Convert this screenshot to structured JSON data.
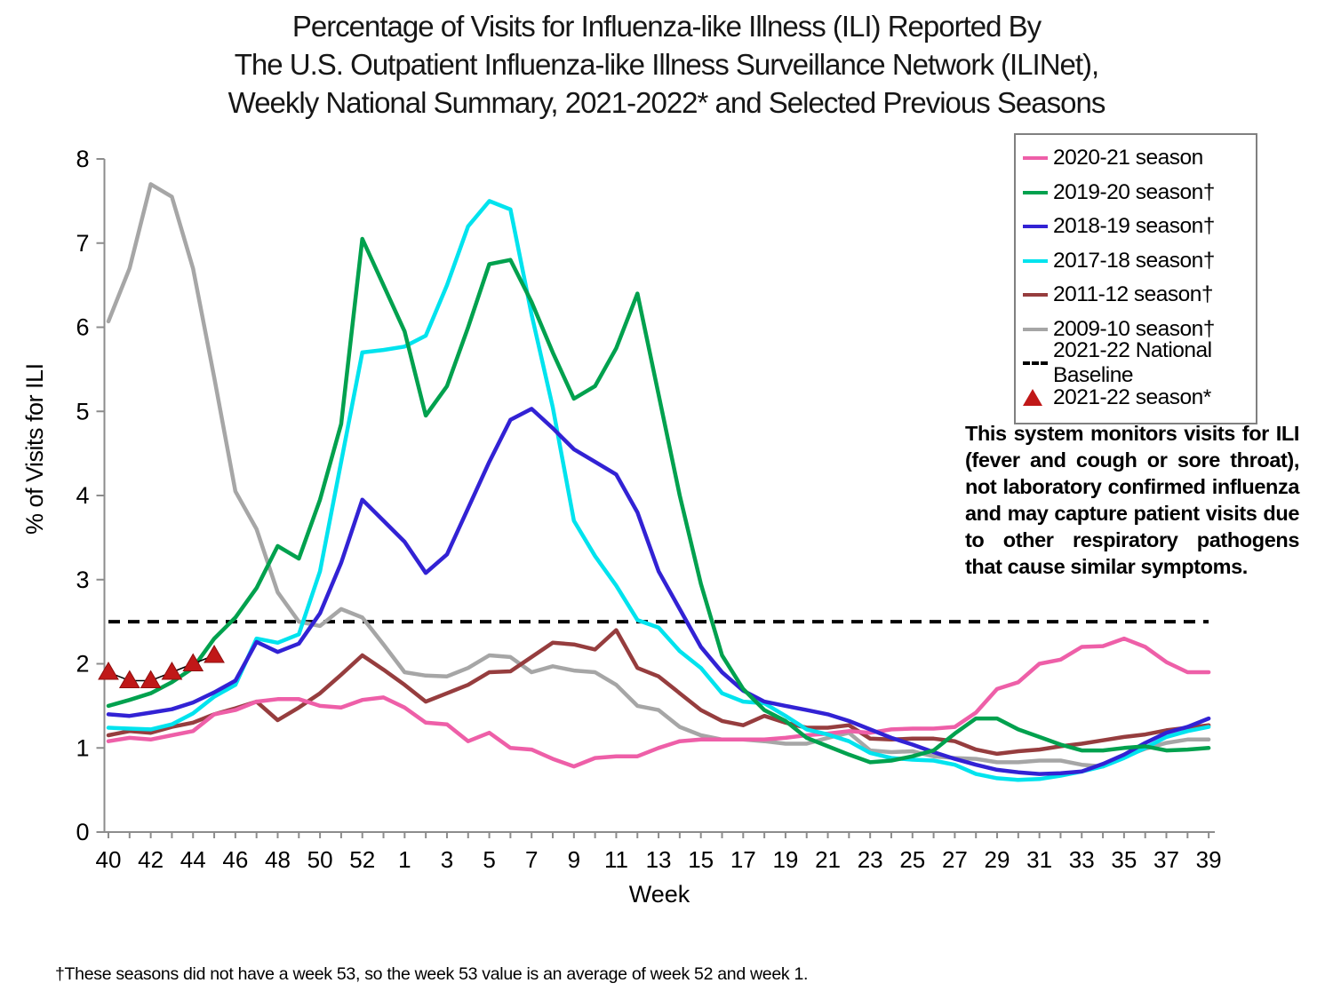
{
  "title": {
    "line1": "Percentage of Visits for Influenza-like Illness (ILI) Reported By",
    "line2": "The U.S. Outpatient Influenza-like Illness Surveillance Network (ILINet),",
    "line3": "Weekly National Summary, 2021-2022* and Selected Previous Seasons"
  },
  "y_axis_title": "% of Visits for ILI",
  "x_axis_title": "Week",
  "note": "This system monitors visits for ILI (fever and cough or sore throat), not laboratory confirmed influenza and may capture patient visits due to other respiratory pathogens that cause similar symptoms.",
  "footnote": "†These seasons did not have a week 53, so the week 53 value is an average of week 52 and week 1.",
  "legend": {
    "items": [
      {
        "label": "2020-21 season",
        "color": "#ee5fa8",
        "kind": "line"
      },
      {
        "label": "2019-20 season†",
        "color": "#00a14e",
        "kind": "line"
      },
      {
        "label": "2018-19 season†",
        "color": "#3222d4",
        "kind": "line"
      },
      {
        "label": "2017-18 season†",
        "color": "#00e3ee",
        "kind": "line"
      },
      {
        "label": "2011-12 season†",
        "color": "#963d3e",
        "kind": "line"
      },
      {
        "label": "2009-10 season†",
        "color": "#a6a6a6",
        "kind": "line"
      },
      {
        "label": "2021-22 National Baseline",
        "color": "#000000",
        "kind": "dashed"
      },
      {
        "label": "2021-22 season*",
        "color": "#c01818",
        "kind": "triangle"
      }
    ]
  },
  "chart_data": {
    "type": "line",
    "title": "Percentage of Visits for Influenza-like Illness (ILI), Weekly National Summary, 2021-2022 and Selected Previous Seasons",
    "xlabel": "Week",
    "ylabel": "% of Visits for ILI",
    "ylim": [
      0,
      8
    ],
    "grid": false,
    "legend_position": "upper right",
    "y_ticks": [
      0,
      1,
      2,
      3,
      4,
      5,
      6,
      7,
      8
    ],
    "x_tick_labels": [
      "40",
      "42",
      "44",
      "46",
      "48",
      "50",
      "52",
      "1",
      "3",
      "5",
      "7",
      "9",
      "11",
      "13",
      "15",
      "17",
      "19",
      "21",
      "23",
      "25",
      "27",
      "29",
      "31",
      "33",
      "35",
      "37",
      "39"
    ],
    "weeks": [
      40,
      41,
      42,
      43,
      44,
      45,
      46,
      47,
      48,
      49,
      50,
      51,
      52,
      53,
      1,
      2,
      3,
      4,
      5,
      6,
      7,
      8,
      9,
      10,
      11,
      12,
      13,
      14,
      15,
      16,
      17,
      18,
      19,
      20,
      21,
      22,
      23,
      24,
      25,
      26,
      27,
      28,
      29,
      30,
      31,
      32,
      33,
      34,
      35,
      36,
      37,
      38,
      39
    ],
    "baseline": {
      "name": "2021-22 National Baseline",
      "value": 2.5,
      "color": "#000000",
      "style": "dashed"
    },
    "series": [
      {
        "name": "2009-10 season†",
        "color": "#a6a6a6",
        "values": [
          6.07,
          6.7,
          7.7,
          7.55,
          6.7,
          5.4,
          4.05,
          3.6,
          2.85,
          2.5,
          2.45,
          2.65,
          2.55,
          2.23,
          1.9,
          1.86,
          1.85,
          1.95,
          2.1,
          2.08,
          1.9,
          1.97,
          1.92,
          1.9,
          1.75,
          1.5,
          1.45,
          1.25,
          1.15,
          1.1,
          1.1,
          1.08,
          1.05,
          1.05,
          1.12,
          1.18,
          0.97,
          0.95,
          0.96,
          0.9,
          0.88,
          0.87,
          0.83,
          0.83,
          0.85,
          0.85,
          0.8,
          0.78,
          0.9,
          0.99,
          1.06,
          1.1,
          1.1
        ]
      },
      {
        "name": "2011-12 season†",
        "color": "#963d3e",
        "values": [
          1.15,
          1.2,
          1.18,
          1.25,
          1.3,
          1.4,
          1.47,
          1.55,
          1.33,
          1.48,
          1.65,
          1.87,
          2.1,
          1.93,
          1.75,
          1.55,
          1.65,
          1.75,
          1.9,
          1.91,
          2.08,
          2.25,
          2.23,
          2.17,
          2.4,
          1.95,
          1.85,
          1.65,
          1.45,
          1.32,
          1.27,
          1.38,
          1.3,
          1.24,
          1.24,
          1.27,
          1.11,
          1.1,
          1.11,
          1.11,
          1.08,
          0.98,
          0.93,
          0.96,
          0.98,
          1.02,
          1.05,
          1.09,
          1.13,
          1.16,
          1.21,
          1.24,
          1.27
        ]
      },
      {
        "name": "2020-21 season",
        "color": "#ee5fa8",
        "values": [
          1.08,
          1.12,
          1.1,
          1.15,
          1.2,
          1.4,
          1.45,
          1.55,
          1.58,
          1.58,
          1.5,
          1.48,
          1.57,
          1.6,
          1.48,
          1.3,
          1.28,
          1.08,
          1.18,
          1.0,
          0.98,
          0.87,
          0.78,
          0.88,
          0.9,
          0.9,
          1.0,
          1.08,
          1.1,
          1.1,
          1.1,
          1.1,
          1.12,
          1.15,
          1.17,
          1.2,
          1.18,
          1.22,
          1.23,
          1.23,
          1.25,
          1.42,
          1.7,
          1.78,
          2.0,
          2.05,
          2.2,
          2.21,
          2.3,
          2.2,
          2.02,
          1.9,
          1.9
        ]
      },
      {
        "name": "2017-18 season†",
        "color": "#00e3ee",
        "values": [
          1.24,
          1.23,
          1.22,
          1.28,
          1.41,
          1.61,
          1.75,
          2.3,
          2.25,
          2.35,
          3.1,
          4.4,
          5.7,
          5.73,
          5.77,
          5.9,
          6.5,
          7.2,
          7.5,
          7.4,
          6.15,
          5.05,
          3.7,
          3.28,
          2.93,
          2.52,
          2.43,
          2.15,
          1.95,
          1.65,
          1.55,
          1.53,
          1.38,
          1.22,
          1.16,
          1.08,
          0.94,
          0.88,
          0.86,
          0.85,
          0.8,
          0.69,
          0.64,
          0.62,
          0.63,
          0.67,
          0.72,
          0.78,
          0.88,
          1.0,
          1.13,
          1.2,
          1.25
        ]
      },
      {
        "name": "2018-19 season†",
        "color": "#3222d4",
        "values": [
          1.4,
          1.38,
          1.42,
          1.46,
          1.54,
          1.66,
          1.8,
          2.26,
          2.14,
          2.24,
          2.6,
          3.2,
          3.95,
          3.7,
          3.45,
          3.08,
          3.3,
          3.85,
          4.4,
          4.9,
          5.03,
          4.8,
          4.55,
          4.4,
          4.25,
          3.8,
          3.1,
          2.65,
          2.2,
          1.9,
          1.68,
          1.55,
          1.5,
          1.45,
          1.4,
          1.32,
          1.22,
          1.12,
          1.04,
          0.95,
          0.87,
          0.8,
          0.74,
          0.71,
          0.69,
          0.7,
          0.72,
          0.81,
          0.92,
          1.06,
          1.18,
          1.25,
          1.35
        ]
      },
      {
        "name": "2019-20 season†",
        "color": "#00a14e",
        "values": [
          1.5,
          1.57,
          1.65,
          1.78,
          1.95,
          2.3,
          2.55,
          2.9,
          3.4,
          3.25,
          3.95,
          4.85,
          7.05,
          6.5,
          5.95,
          4.95,
          5.3,
          6.0,
          6.75,
          6.8,
          6.3,
          5.7,
          5.15,
          5.3,
          5.75,
          6.4,
          5.2,
          4.0,
          2.95,
          2.1,
          1.7,
          1.45,
          1.32,
          1.12,
          1.02,
          0.92,
          0.83,
          0.85,
          0.9,
          0.97,
          1.17,
          1.35,
          1.35,
          1.22,
          1.13,
          1.04,
          0.97,
          0.97,
          1.0,
          1.02,
          0.97,
          0.98,
          1.0
        ]
      }
    ],
    "markers": {
      "name": "2021-22 season*",
      "color": "#c01818",
      "shape": "triangle",
      "weeks": [
        40,
        41,
        42,
        43,
        44,
        45
      ],
      "values": [
        1.9,
        1.8,
        1.8,
        1.9,
        2.0,
        2.1
      ]
    }
  }
}
